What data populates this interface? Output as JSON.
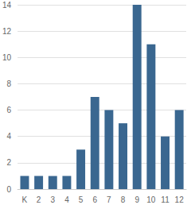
{
  "chart_data": {
    "type": "bar",
    "categories": [
      "K",
      "2",
      "3",
      "4",
      "5",
      "6",
      "7",
      "8",
      "9",
      "10",
      "11",
      "12"
    ],
    "values": [
      1,
      1,
      1,
      1,
      3,
      7,
      6,
      5,
      14,
      11,
      4,
      6
    ],
    "color": "#3a6790",
    "ylim": [
      0,
      14
    ],
    "yticks": [
      0,
      2,
      4,
      6,
      8,
      10,
      12,
      14
    ],
    "grid": true
  }
}
